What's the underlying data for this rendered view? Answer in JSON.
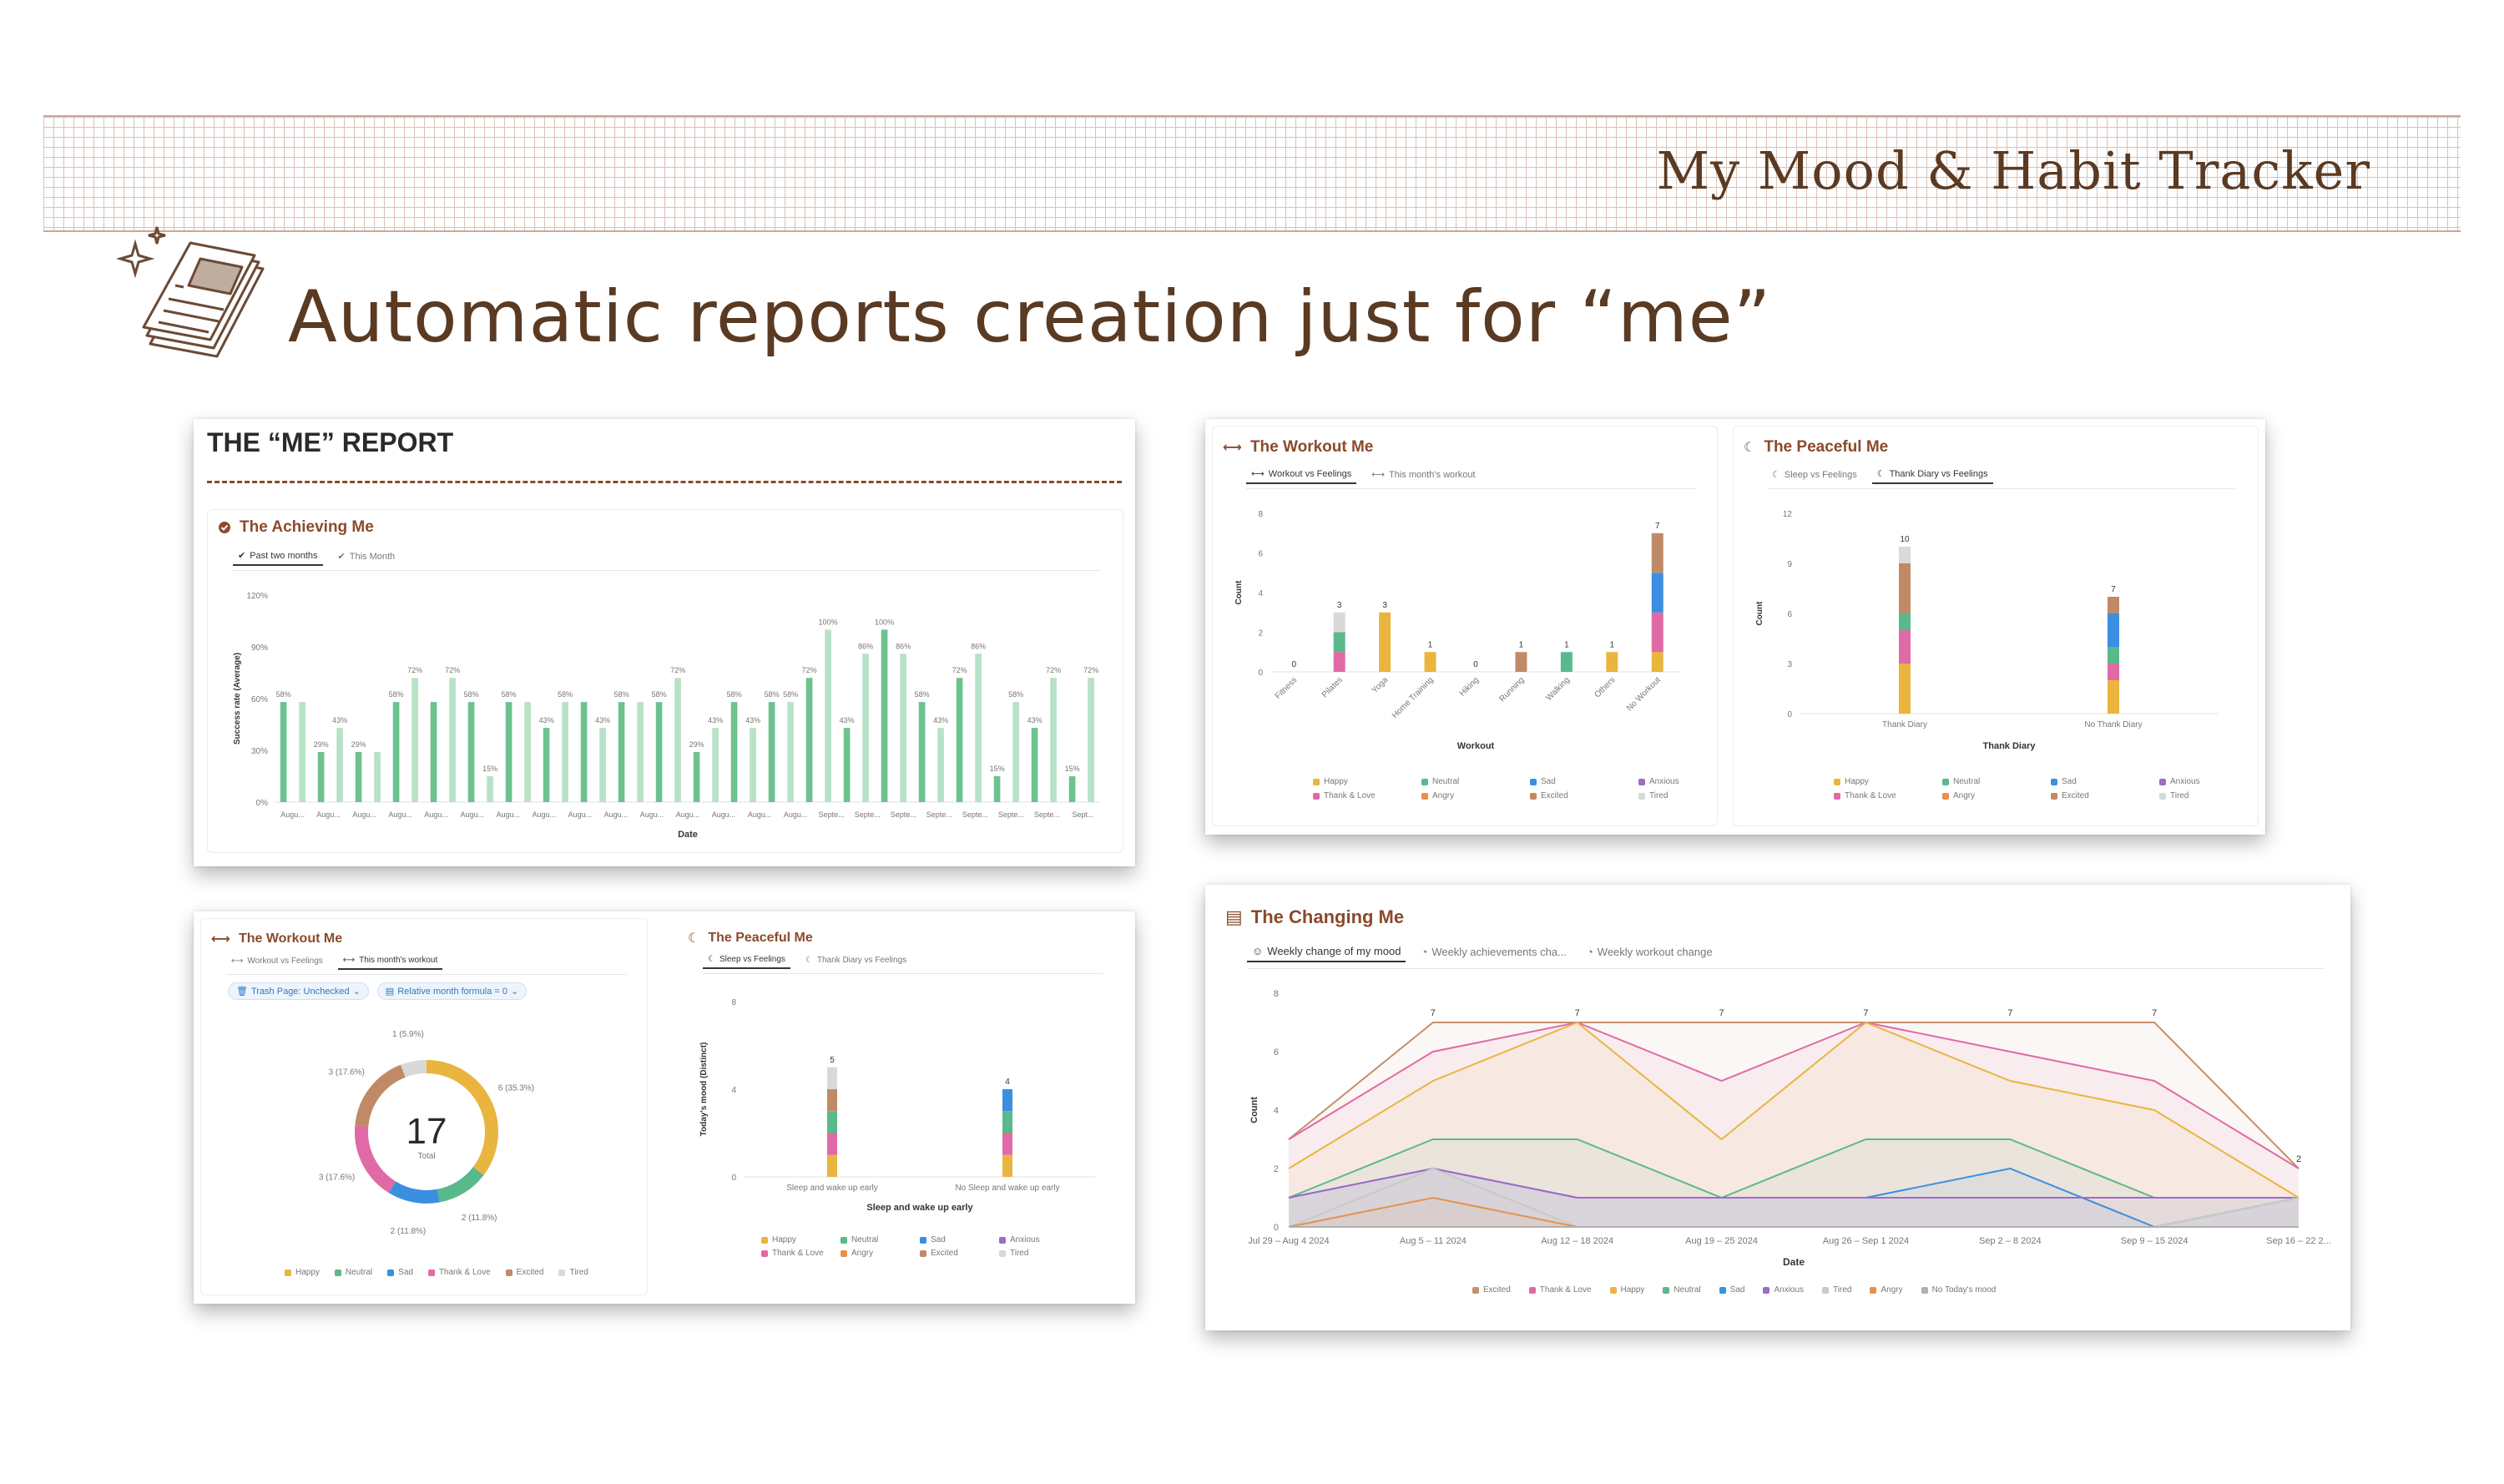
{
  "brand": "My Mood & Habit Tracker",
  "headline": "Automatic reports creation just for “me”",
  "colors": {
    "brand": "#5a3a22",
    "accent": "#8b4a2b",
    "bar": "#6dc28e",
    "bar_light": "#b7e2c6"
  },
  "me_report": {
    "title": "THE “ME” REPORT",
    "achieving": {
      "title": "The Achieving Me",
      "tabs": [
        "Past two months",
        "This Month"
      ],
      "chart_data": {
        "type": "bar",
        "xlabel": "Date",
        "ylabel": "Success rate (Average)",
        "ylim": [
          0,
          120
        ],
        "yticks": [
          "0%",
          "30%",
          "60%",
          "90%",
          "120%"
        ],
        "categories": [
          "Augu...",
          "Augu...",
          "Augu...",
          "Augu...",
          "Augu...",
          "Augu...",
          "Augu...",
          "Augu...",
          "Augu...",
          "Augu...",
          "Augu...",
          "Augu...",
          "Augu...",
          "Augu...",
          "Augu...",
          "Augu...",
          "Augu...",
          "Augu...",
          "Augu...",
          "Augu...",
          "Augu...",
          "Augu...",
          "Augu...",
          "Augu...",
          "Augu...",
          "Augu...",
          "Augu...",
          "Septe...",
          "Septe...",
          "Septe...",
          "Septe...",
          "Septe...",
          "Septe...",
          "Septe...",
          "Septe...",
          "Septe...",
          "Septe...",
          "Septe...",
          "Septe...",
          "Septe...",
          "Septe...",
          "Septe...",
          "Septe...",
          "Sept..."
        ],
        "values": [
          58,
          58,
          29,
          43,
          29,
          29,
          58,
          72,
          58,
          72,
          58,
          15,
          58,
          58,
          43,
          58,
          58,
          43,
          58,
          58,
          58,
          72,
          29,
          43,
          58,
          43,
          58,
          58,
          72,
          100,
          43,
          86,
          100,
          86,
          58,
          43,
          72,
          86,
          15,
          58,
          43,
          72,
          15,
          72
        ],
        "labels": [
          "58%",
          "",
          "29%",
          "43%",
          "29%",
          "",
          "58%",
          "72%",
          "",
          "72%",
          "58%",
          "15%",
          "58%",
          "",
          "43%",
          "58%",
          "",
          "43%",
          "58%",
          "",
          "58%",
          "72%",
          "29%",
          "43%",
          "58%",
          "43%",
          "58%",
          "58%",
          "72%",
          "100%",
          "43%",
          "86%",
          "100%",
          "86%",
          "58%",
          "43%",
          "72%",
          "86%",
          "15%",
          "58%",
          "43%",
          "72%",
          "15%",
          "72%"
        ],
        "xtick_labels": [
          "Augu...",
          "Augu...",
          "Augu...",
          "Augu...",
          "Augu...",
          "Augu...",
          "Augu...",
          "Augu...",
          "Augu...",
          "Augu...",
          "Augu...",
          "Augu...",
          "Augu...",
          "Augu...",
          "Augu...",
          "Septe...",
          "Septe...",
          "Septe...",
          "Septe...",
          "Septe...",
          "Septe...",
          "Septe...",
          "Sept..."
        ]
      }
    }
  },
  "workout_top": {
    "title": "The Workout Me",
    "tabs": [
      "Workout vs Feelings",
      "This month's workout"
    ],
    "chart_data": {
      "type": "bar",
      "stacked": true,
      "xlabel": "Workout",
      "ylabel": "Count",
      "ylim": [
        0,
        8
      ],
      "yticks": [
        "0",
        "2",
        "4",
        "6",
        "8"
      ],
      "categories": [
        "Fitness",
        "Pilates",
        "Yoga",
        "Home Training",
        "Hiking",
        "Running",
        "Walking",
        "Others",
        "No Workout"
      ],
      "totals": [
        0,
        3,
        3,
        1,
        0,
        1,
        1,
        1,
        7
      ],
      "series": [
        {
          "name": "Happy",
          "color": "#e9b53f",
          "values": [
            0,
            0,
            3,
            1,
            0,
            0,
            0,
            1,
            1
          ]
        },
        {
          "name": "Thank & Love",
          "color": "#e06aa5",
          "values": [
            0,
            1,
            0,
            0,
            0,
            0,
            0,
            0,
            2
          ]
        },
        {
          "name": "Neutral",
          "color": "#5ab98a",
          "values": [
            0,
            1,
            0,
            0,
            0,
            0,
            1,
            0,
            0
          ]
        },
        {
          "name": "Angry",
          "color": "#e8904b",
          "values": [
            0,
            0,
            0,
            0,
            0,
            0,
            0,
            0,
            0
          ]
        },
        {
          "name": "Sad",
          "color": "#3b8fe0",
          "values": [
            0,
            0,
            0,
            0,
            0,
            0,
            0,
            0,
            2
          ]
        },
        {
          "name": "Excited",
          "color": "#c08a67",
          "values": [
            0,
            0,
            0,
            0,
            0,
            1,
            0,
            0,
            2
          ]
        },
        {
          "name": "Anxious",
          "color": "#a06ac8",
          "values": [
            0,
            0,
            0,
            0,
            0,
            0,
            0,
            0,
            0
          ]
        },
        {
          "name": "Tired",
          "color": "#d9d9d7",
          "values": [
            0,
            1,
            0,
            0,
            0,
            0,
            0,
            0,
            0
          ]
        }
      ]
    }
  },
  "peaceful_top": {
    "title": "The Peaceful Me",
    "tabs": [
      "Sleep vs Feelings",
      "Thank Diary vs Feelings"
    ],
    "chart_data": {
      "type": "bar",
      "stacked": true,
      "xlabel": "Thank Diary",
      "ylabel": "Count",
      "ylim": [
        0,
        12
      ],
      "yticks": [
        "0",
        "3",
        "6",
        "9",
        "12"
      ],
      "categories": [
        "Thank Diary",
        "No Thank Diary"
      ],
      "totals": [
        10,
        7
      ],
      "series": [
        {
          "name": "Happy",
          "color": "#e9b53f",
          "values": [
            3,
            2
          ]
        },
        {
          "name": "Thank & Love",
          "color": "#e06aa5",
          "values": [
            2,
            1
          ]
        },
        {
          "name": "Neutral",
          "color": "#5ab98a",
          "values": [
            1,
            1
          ]
        },
        {
          "name": "Angry",
          "color": "#e8904b",
          "values": [
            0,
            0
          ]
        },
        {
          "name": "Sad",
          "color": "#3b8fe0",
          "values": [
            0,
            2
          ]
        },
        {
          "name": "Excited",
          "color": "#c08a67",
          "values": [
            3,
            1
          ]
        },
        {
          "name": "Anxious",
          "color": "#a06ac8",
          "values": [
            0,
            0
          ]
        },
        {
          "name": "Tired",
          "color": "#d9d9d7",
          "values": [
            1,
            0
          ]
        }
      ]
    }
  },
  "workout_bottom": {
    "title": "The Workout Me",
    "tabs": [
      "Workout vs Feelings",
      "This month's workout"
    ],
    "filters": [
      "Trash Page: Unchecked",
      "Relative month formula = 0"
    ],
    "chart_data": {
      "type": "pie",
      "donut": true,
      "total": "17",
      "total_label": "Total",
      "slices": [
        {
          "name": "Happy",
          "value": 6,
          "label": "6 (35.3%)",
          "color": "#e9b53f"
        },
        {
          "name": "Neutral",
          "value": 2,
          "label": "2 (11.8%)",
          "color": "#5ab98a"
        },
        {
          "name": "Sad",
          "value": 2,
          "label": "2 (11.8%)",
          "color": "#3b8fe0"
        },
        {
          "name": "Thank & Love",
          "value": 3,
          "label": "3 (17.6%)",
          "color": "#e06aa5"
        },
        {
          "name": "Excited",
          "value": 3,
          "label": "3 (17.6%)",
          "color": "#c08a67"
        },
        {
          "name": "Tired",
          "value": 1,
          "label": "1 (5.9%)",
          "color": "#d9d9d7"
        }
      ]
    }
  },
  "peaceful_bottom": {
    "title": "The Peaceful Me",
    "tabs": [
      "Sleep vs Feelings",
      "Thank Diary vs Feelings"
    ],
    "chart_data": {
      "type": "bar",
      "stacked": true,
      "xlabel": "Sleep and wake up early",
      "ylabel": "Today's mood (Distinct)",
      "ylim": [
        0,
        8
      ],
      "yticks": [
        "0",
        "4",
        "8"
      ],
      "categories": [
        "Sleep and wake up early",
        "No Sleep and wake up early"
      ],
      "totals": [
        5,
        4
      ],
      "series": [
        {
          "name": "Happy",
          "color": "#e9b53f",
          "values": [
            1,
            1
          ]
        },
        {
          "name": "Thank & Love",
          "color": "#e06aa5",
          "values": [
            1,
            1
          ]
        },
        {
          "name": "Neutral",
          "color": "#5ab98a",
          "values": [
            1,
            1
          ]
        },
        {
          "name": "Angry",
          "color": "#e8904b",
          "values": [
            0,
            0
          ]
        },
        {
          "name": "Sad",
          "color": "#3b8fe0",
          "values": [
            0,
            1
          ]
        },
        {
          "name": "Excited",
          "color": "#c08a67",
          "values": [
            1,
            0
          ]
        },
        {
          "name": "Anxious",
          "color": "#a06ac8",
          "values": [
            0,
            0
          ]
        },
        {
          "name": "Tired",
          "color": "#d9d9d7",
          "values": [
            1,
            0
          ]
        }
      ]
    }
  },
  "changing": {
    "title": "The Changing Me",
    "tabs": [
      "Weekly change of my mood",
      "Weekly achievements cha...",
      "Weekly workout change"
    ],
    "chart_data": {
      "type": "area",
      "xlabel": "Date",
      "ylabel": "Count",
      "ylim": [
        0,
        8
      ],
      "yticks": [
        "0",
        "2",
        "4",
        "6",
        "8"
      ],
      "x": [
        "Jul 29 – Aug 4 2024",
        "Aug 5 – 11 2024",
        "Aug 12 – 18 2024",
        "Aug 19 – 25 2024",
        "Aug 26 – Sep 1 2024",
        "Sep 2 – 8 2024",
        "Sep 9 – 15 2024",
        "Sep 16 – 22 2..."
      ],
      "top_labels": [
        "7",
        "7",
        "7",
        "7",
        "7",
        "7",
        "2"
      ],
      "series": [
        {
          "name": "Excited",
          "color": "#c4906e",
          "values": [
            3,
            7,
            7,
            7,
            7,
            7,
            7,
            2
          ]
        },
        {
          "name": "Thank & Love",
          "color": "#e06aa5",
          "values": [
            3,
            6,
            7,
            5,
            7,
            6,
            5,
            2
          ]
        },
        {
          "name": "Happy",
          "color": "#e9b53f",
          "values": [
            2,
            5,
            7,
            3,
            7,
            5,
            4,
            1
          ]
        },
        {
          "name": "Neutral",
          "color": "#5ab98a",
          "values": [
            1,
            3,
            3,
            1,
            3,
            3,
            1,
            1
          ]
        },
        {
          "name": "Sad",
          "color": "#3b8fe0",
          "values": [
            1,
            2,
            1,
            1,
            1,
            2,
            0,
            1
          ]
        },
        {
          "name": "Anxious",
          "color": "#a06ac8",
          "values": [
            1,
            2,
            1,
            1,
            1,
            1,
            1,
            1
          ]
        },
        {
          "name": "Tired",
          "color": "#c9c9c7",
          "values": [
            0,
            2,
            0,
            0,
            0,
            0,
            0,
            1
          ]
        },
        {
          "name": "Angry",
          "color": "#e8904b",
          "values": [
            0,
            1,
            0,
            0,
            0,
            0,
            0,
            0
          ]
        },
        {
          "name": "No Today's mood",
          "color": "#b0b0ae",
          "values": [
            0,
            0,
            0,
            0,
            0,
            0,
            0,
            0
          ]
        }
      ]
    }
  },
  "legend": {
    "happy": "Happy",
    "neutral": "Neutral",
    "sad": "Sad",
    "anxious": "Anxious",
    "thank": "Thank & Love",
    "angry": "Angry",
    "excited": "Excited",
    "tired": "Tired",
    "nomood": "No Today's mood"
  }
}
